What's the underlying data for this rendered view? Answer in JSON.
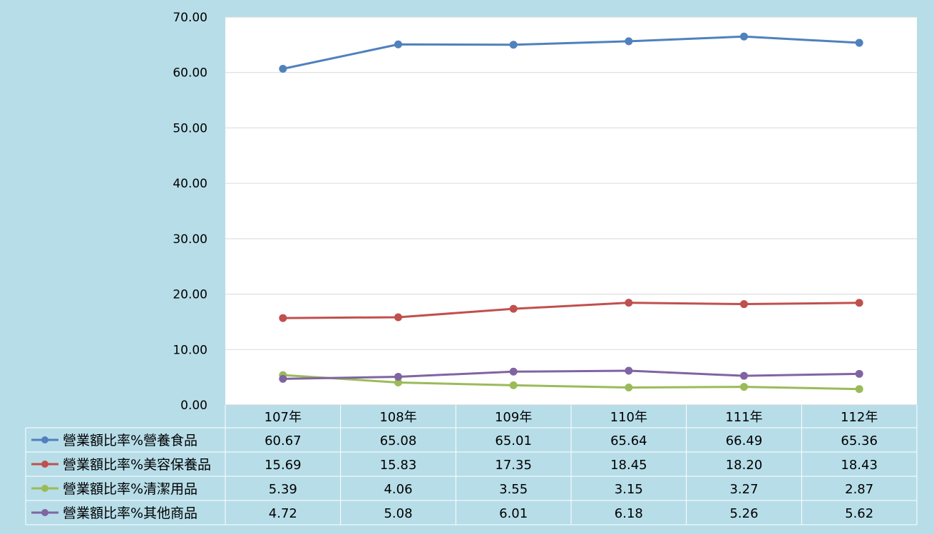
{
  "chart_data": {
    "type": "line",
    "title": "",
    "xlabel": "",
    "ylabel": "",
    "ylim": [
      0,
      70
    ],
    "yticks": [
      "0.00",
      "10.00",
      "20.00",
      "30.00",
      "40.00",
      "50.00",
      "60.00",
      "70.00"
    ],
    "grid": true,
    "legend": "data-table-left",
    "categories": [
      "107年",
      "108年",
      "109年",
      "110年",
      "111年",
      "112年"
    ],
    "series": [
      {
        "name": "營業額比率%營養食品",
        "color": "#4f81bd",
        "values": [
          60.67,
          65.08,
          65.01,
          65.64,
          66.49,
          65.36
        ],
        "labels": [
          "60.67",
          "65.08",
          "65.01",
          "65.64",
          "66.49",
          "65.36"
        ]
      },
      {
        "name": "營業額比率%美容保養品",
        "color": "#c0504d",
        "values": [
          15.69,
          15.83,
          17.35,
          18.45,
          18.2,
          18.43
        ],
        "labels": [
          "15.69",
          "15.83",
          "17.35",
          "18.45",
          "18.20",
          "18.43"
        ]
      },
      {
        "name": "營業額比率%清潔用品",
        "color": "#9bbb59",
        "values": [
          5.39,
          4.06,
          3.55,
          3.15,
          3.27,
          2.87
        ],
        "labels": [
          "5.39",
          "4.06",
          "3.55",
          "3.15",
          "3.27",
          "2.87"
        ]
      },
      {
        "name": "營業額比率%其他商品",
        "color": "#8064a2",
        "values": [
          4.72,
          5.08,
          6.01,
          6.18,
          5.26,
          5.62
        ],
        "labels": [
          "4.72",
          "5.08",
          "6.01",
          "6.18",
          "5.26",
          "5.62"
        ]
      }
    ]
  }
}
